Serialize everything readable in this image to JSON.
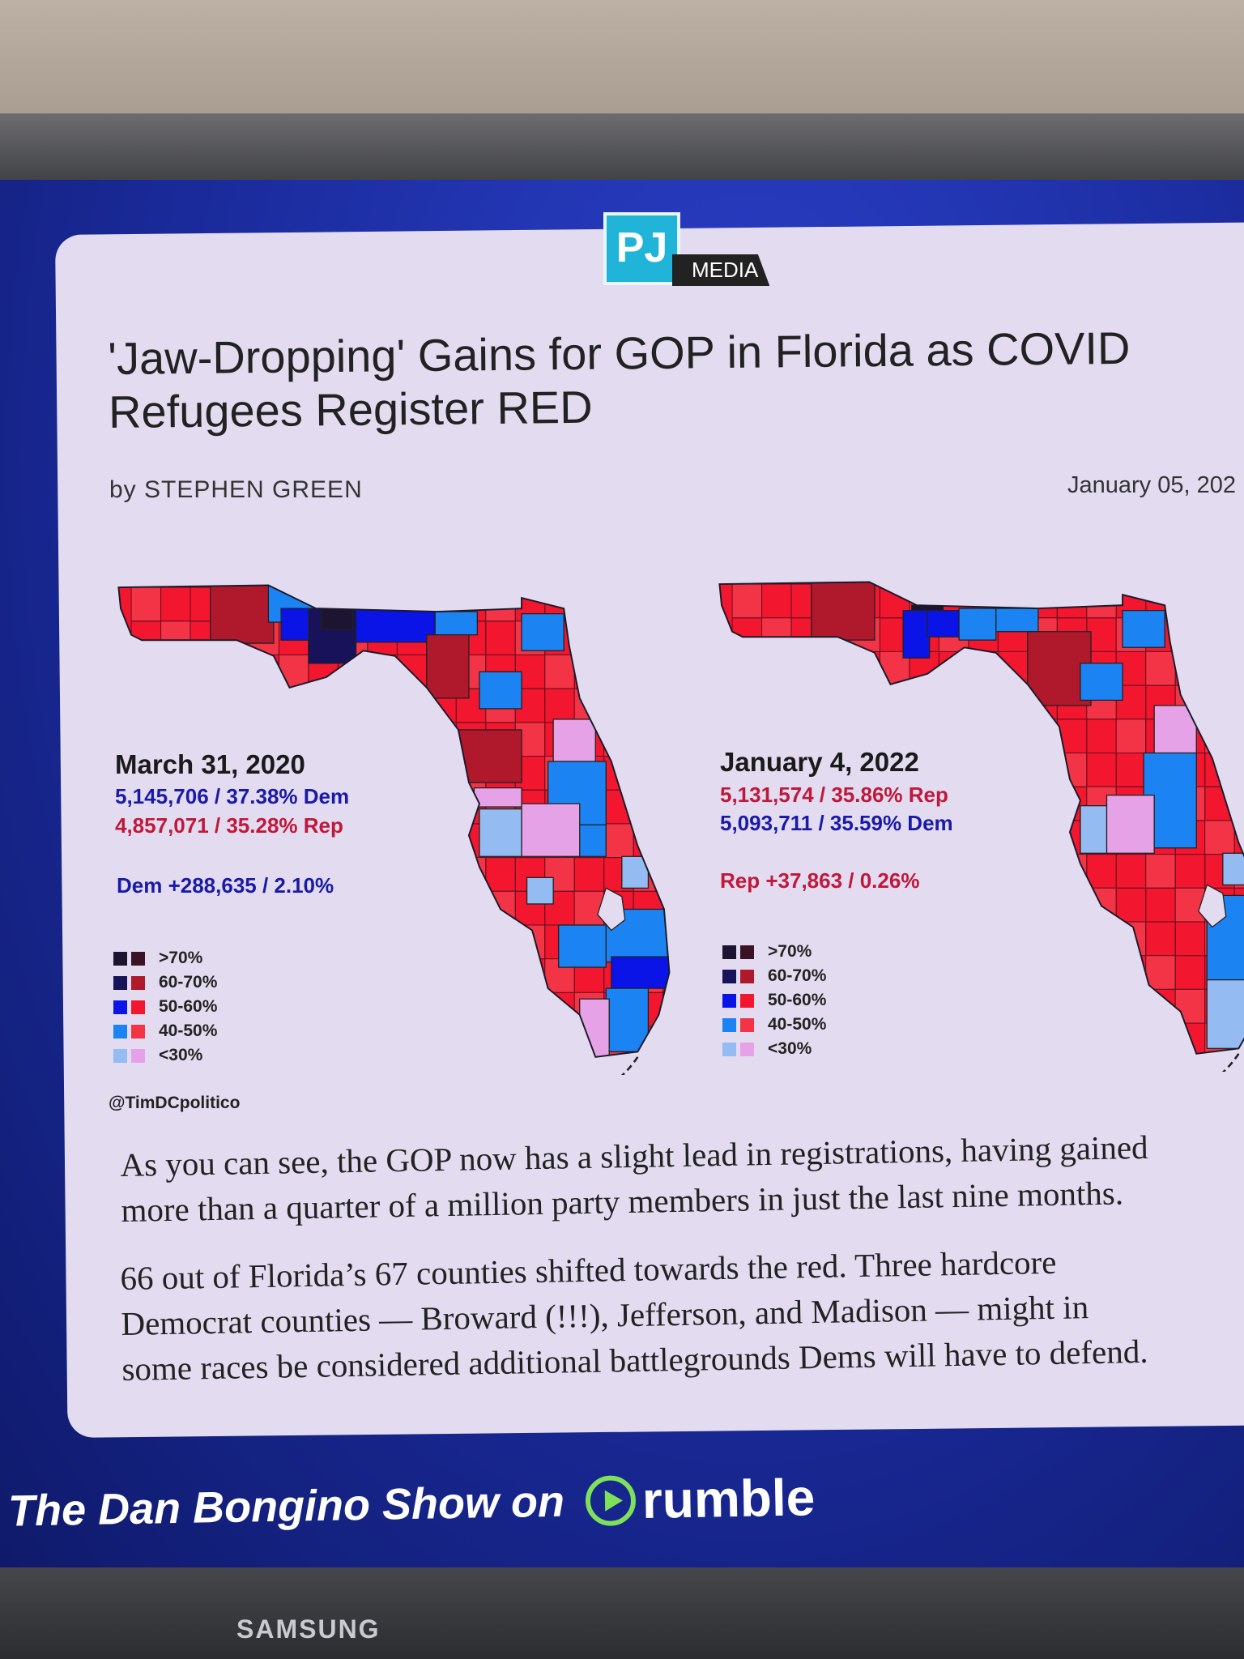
{
  "tv": {
    "brand": "SAMSUNG"
  },
  "article": {
    "logo": {
      "mark": "PJ",
      "sub": "MEDIA"
    },
    "title_line1": "'Jaw-Dropping' Gains for GOP in Florida as COVID",
    "title_line2": "Refugees Register RED",
    "byline": "by STEPHEN GREEN",
    "date": "January 05, 202",
    "paragraphs": [
      [
        "As you can see, the GOP now has a slight lead in registrations, having gained",
        "more than a quarter of a million party members in just the last nine months."
      ],
      [
        "66 out of Florida’s 67 counties shifted towards the red. Three hardcore",
        "Democrat counties — Broward (!!!), Jefferson, and Madison — might in",
        "some races be considered additional battlegrounds Dems will have to defend."
      ]
    ]
  },
  "maps": [
    {
      "date": "March 31, 2020",
      "line1": "5,145,706 / 37.38% Dem",
      "line1_party": "Dem",
      "line2": "4,857,071 / 35.28% Rep",
      "line2_party": "Rep",
      "margin": "Dem +288,635 / 2.10%",
      "margin_party": "Dem",
      "credit": "@TimDCpolitico"
    },
    {
      "date": "January 4, 2022",
      "line1": "5,131,574 / 35.86% Rep",
      "line1_party": "Rep",
      "line2": "5,093,711 / 35.59% Dem",
      "line2_party": "Dem",
      "margin": "Rep +37,863 / 0.26%",
      "margin_party": "Rep"
    }
  ],
  "legend": [
    {
      "label": ">70%",
      "dem": "#1c1430",
      "rep": "#3a1424"
    },
    {
      "label": "60-70%",
      "dem": "#17125a",
      "rep": "#b0182c"
    },
    {
      "label": "50-60%",
      "dem": "#0a14e6",
      "rep": "#f2162e"
    },
    {
      "label": "40-50%",
      "dem": "#1c84f2",
      "rep": "#f23446"
    },
    {
      "label": "<30%",
      "dem": "#94bcf2",
      "rep": "#e6a2e6"
    }
  ],
  "colors": {
    "dem_text": "#1a1aa8",
    "rep_text": "#c0183a"
  },
  "banner": {
    "show": "The Dan Bongino Show on",
    "platform": "rumble"
  }
}
